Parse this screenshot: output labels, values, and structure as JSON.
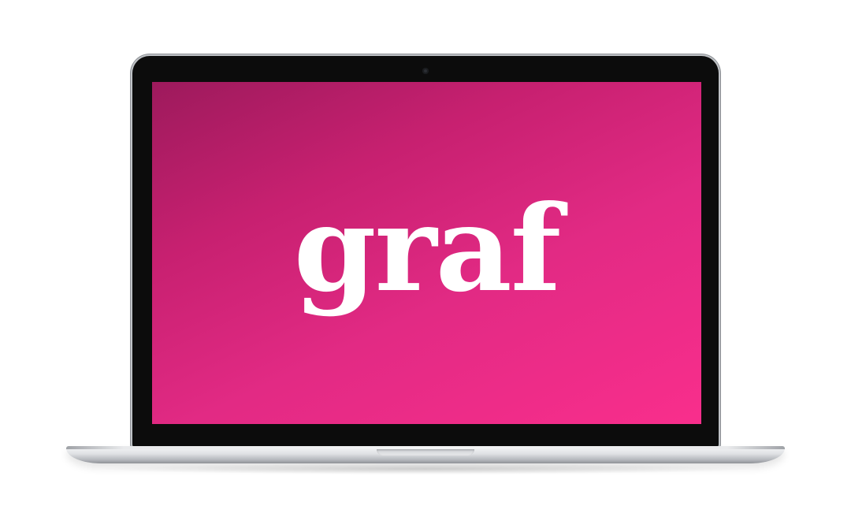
{
  "screen": {
    "wordmark": "graf"
  },
  "colors": {
    "screen_gradient_start": "#9d1a5c",
    "screen_gradient_end": "#f92e8c",
    "wordmark_color": "#ffffff"
  }
}
